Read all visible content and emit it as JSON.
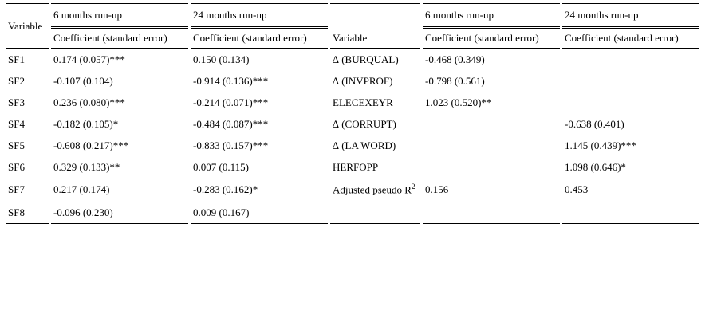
{
  "table": {
    "header": {
      "variable": "Variable",
      "six_months": "6 months run-up",
      "twentyfour_months": "24 months run-up",
      "coef_se": "Coefficient (standard error)"
    },
    "left_rows": [
      {
        "var": "SF1",
        "m6": "0.174 (0.057)***",
        "m24": "0.150 (0.134)"
      },
      {
        "var": "SF2",
        "m6": "-0.107 (0.104)",
        "m24": "-0.914 (0.136)***"
      },
      {
        "var": "SF3",
        "m6": "0.236 (0.080)***",
        "m24": "-0.214 (0.071)***"
      },
      {
        "var": "SF4",
        "m6": "-0.182 (0.105)*",
        "m24": "-0.484 (0.087)***"
      },
      {
        "var": "SF5",
        "m6": "-0.608 (0.217)***",
        "m24": "-0.833 (0.157)***"
      },
      {
        "var": "SF6",
        "m6": "0.329 (0.133)**",
        "m24": "0.007 (0.115)"
      },
      {
        "var": "SF7",
        "m6": "0.217 (0.174)",
        "m24": "-0.283 (0.162)*"
      },
      {
        "var": "SF8",
        "m6": "-0.096 (0.230)",
        "m24": "0.009 (0.167)"
      }
    ],
    "right_rows": [
      {
        "var": "∆ (BURQUAL)",
        "m6": "-0.468 (0.349)",
        "m24": ""
      },
      {
        "var": "∆ (INVPROF)",
        "m6": "-0.798 (0.561)",
        "m24": ""
      },
      {
        "var": "ELECEXEYR",
        "m6": "1.023 (0.520)**",
        "m24": ""
      },
      {
        "var": "∆ (CORRUPT)",
        "m6": "",
        "m24": "-0.638 (0.401)"
      },
      {
        "var": "∆ (LA WORD)",
        "m6": "",
        "m24": "1.145 (0.439)***"
      },
      {
        "var": "HERFOPP",
        "m6": "",
        "m24": "1.098 (0.646)*"
      },
      {
        "var": "Adjusted pseudo R",
        "sup": "2",
        "m6": "0.156",
        "m24": "0.453"
      },
      {
        "var": "",
        "m6": "",
        "m24": ""
      }
    ]
  }
}
